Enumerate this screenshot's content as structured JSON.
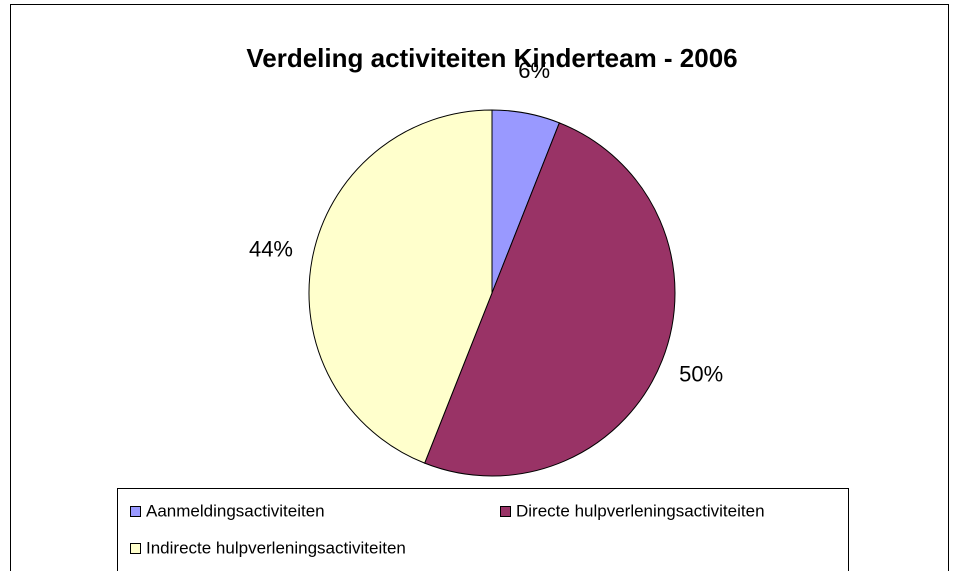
{
  "chart_data": {
    "type": "pie",
    "title": "Verdeling activiteiten Kinderteam - 2006",
    "categories": [
      "Aanmeldingsactiviteiten",
      "Directe hulpverleningsactiviteiten",
      "Indirecte hulpverleningsactiviteiten"
    ],
    "values": [
      6,
      50,
      44
    ],
    "value_labels": [
      "6%",
      "50%",
      "44%"
    ],
    "colors": [
      "#9999ff",
      "#993366",
      "#ffffcc"
    ],
    "legend": "bottom"
  }
}
